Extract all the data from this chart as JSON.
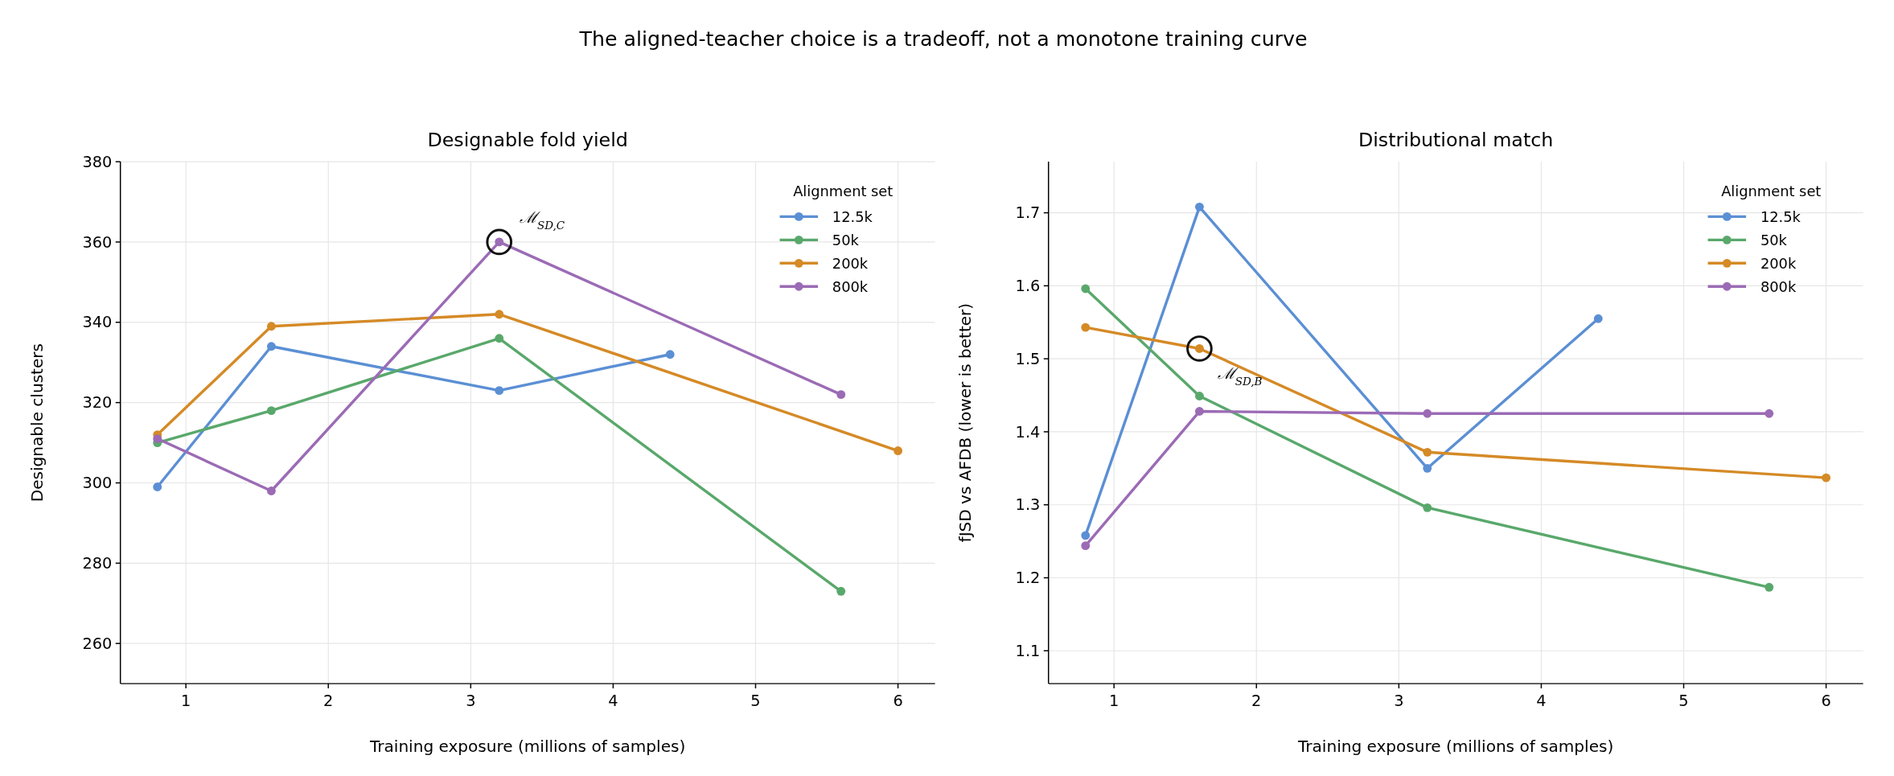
{
  "chart_data": [
    {
      "type": "line",
      "title": "Designable fold yield",
      "xlabel": "Training exposure (millions of samples)",
      "ylabel": "Designable clusters",
      "legend_title": "Alignment set",
      "legend": "top right",
      "grid": true,
      "marker": "circle",
      "line_style": "solid",
      "xlim": [
        0.54,
        6.26
      ],
      "xticks": [
        1,
        2,
        3,
        4,
        5,
        6
      ],
      "ylim": [
        250,
        380
      ],
      "yticks": [
        260,
        280,
        300,
        320,
        340,
        360,
        380
      ],
      "annotations": [
        "The aligned-teacher choice is a tradeoff, not a monotone training curve",
        {
          "text": "ℳ$_{SD,C}$",
          "x": 3.2,
          "y": 360
        }
      ],
      "series": [
        {
          "name": "12.5k",
          "color": "#5b8fd4",
          "x": [
            0.8,
            1.6,
            3.2,
            4.4
          ],
          "values": [
            299,
            334,
            323,
            332
          ]
        },
        {
          "name": "50k",
          "color": "#59a86b",
          "x": [
            0.8,
            1.6,
            3.2,
            5.6
          ],
          "values": [
            310,
            318,
            336,
            273
          ]
        },
        {
          "name": "200k",
          "color": "#d58a26",
          "x": [
            0.8,
            1.6,
            3.2,
            6
          ],
          "values": [
            312,
            339,
            342,
            308
          ]
        },
        {
          "name": "800k",
          "color": "#9b6bb5",
          "x": [
            0.8,
            1.6,
            3.2,
            5.6
          ],
          "values": [
            311,
            298,
            360,
            322
          ]
        }
      ]
    },
    {
      "type": "line",
      "title": "Distributional match",
      "xlabel": "Training exposure (millions of samples)",
      "ylabel": "fJSD vs AFDB (lower is better)",
      "legend_title": "Alignment set",
      "legend": "top right",
      "grid": true,
      "marker": "circle",
      "line_style": "solid",
      "xlim": [
        0.54,
        6.26
      ],
      "xticks": [
        1,
        2,
        3,
        4,
        5,
        6
      ],
      "ylim": [
        1.055,
        1.77
      ],
      "yticks": [
        1.1,
        1.2,
        1.3,
        1.4,
        1.5,
        1.6,
        1.7
      ],
      "annotations": [
        {
          "text": "ℳ$_{SD,B}$",
          "x": 1.6,
          "y": 1.514
        }
      ],
      "series": [
        {
          "name": "12.5k",
          "color": "#5b8fd4",
          "x": [
            0.8,
            1.6,
            3.2,
            4.4
          ],
          "values": [
            1.258,
            1.708,
            1.35,
            1.555
          ]
        },
        {
          "name": "50k",
          "color": "#59a86b",
          "x": [
            0.8,
            1.6,
            3.2,
            5.6
          ],
          "values": [
            1.596,
            1.449,
            1.296,
            1.187
          ]
        },
        {
          "name": "200k",
          "color": "#d58a26",
          "x": [
            0.8,
            1.6,
            3.2,
            6
          ],
          "values": [
            1.543,
            1.514,
            1.372,
            1.337
          ]
        },
        {
          "name": "800k",
          "color": "#9b6bb5",
          "x": [
            0.8,
            1.6,
            3.2,
            5.6
          ],
          "values": [
            1.244,
            1.428,
            1.425,
            1.425
          ]
        }
      ]
    }
  ]
}
